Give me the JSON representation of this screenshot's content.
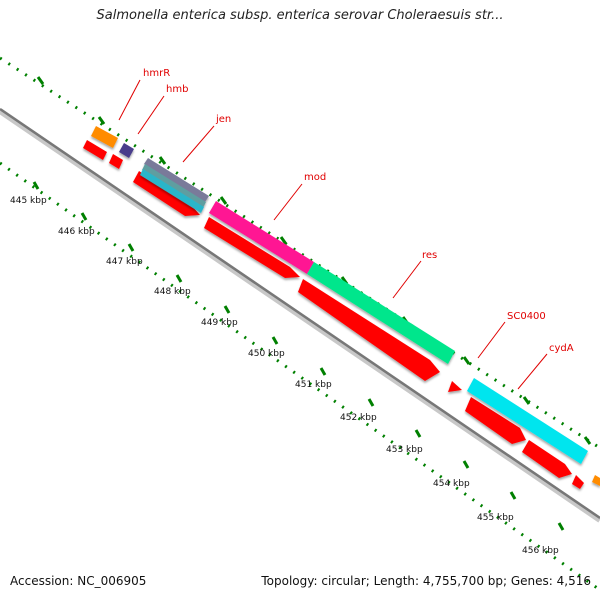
{
  "title": "Salmonella enterica subsp. enterica serovar Choleraesuis str...",
  "accession": "Accession: NC_006905",
  "summary": "Topology: circular; Length: 4,755,700 bp; Genes: 4,516",
  "ruler_labels": [
    "445 kbp",
    "446 kbp",
    "447 kbp",
    "448 kbp",
    "449 kbp",
    "450 kbp",
    "451 kbp",
    "452 kbp",
    "453 kbp",
    "454 kbp",
    "455 kbp",
    "456 kbp"
  ],
  "features": [
    {
      "name": "hmrR",
      "color": "#ff8c00",
      "strand": "plus"
    },
    {
      "name": "hmb",
      "color": "#483d8b",
      "strand": "plus"
    },
    {
      "name": "jen",
      "color": "#5f9ea0",
      "strand": "plus"
    },
    {
      "name": "mod",
      "color": "#ff1493",
      "strand": "plus"
    },
    {
      "name": "res",
      "color": "#00e68c",
      "strand": "plus"
    },
    {
      "name": "SC0400",
      "color": "#ffffff",
      "strand": "plus"
    },
    {
      "name": "cydA",
      "color": "#00e5ee",
      "strand": "plus"
    }
  ],
  "colors": {
    "gene": "#ff0000",
    "backbone": "#777777",
    "tick": "#008000",
    "label": "#e00000"
  }
}
